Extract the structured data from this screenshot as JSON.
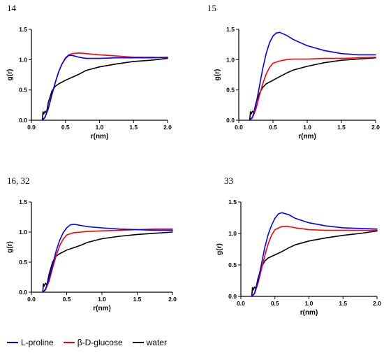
{
  "chart_data": [
    {
      "type": "line",
      "title": "14",
      "xlabel": "r(nm)",
      "ylabel": "g(r)",
      "xlim": [
        0.0,
        2.0
      ],
      "ylim": [
        0.0,
        1.5
      ],
      "xticks": [
        "0.0",
        "0.5",
        "1.0",
        "1.5",
        "2.0"
      ],
      "yticks": [
        "0.0",
        "0.5",
        "1.0",
        "1.5"
      ],
      "grid": false,
      "series": [
        {
          "name": "L-proline",
          "color": "#0000ff",
          "points": [
            [
              0.16,
              0.0
            ],
            [
              0.2,
              0.05
            ],
            [
              0.25,
              0.2
            ],
            [
              0.3,
              0.42
            ],
            [
              0.35,
              0.62
            ],
            [
              0.4,
              0.8
            ],
            [
              0.45,
              0.93
            ],
            [
              0.5,
              1.02
            ],
            [
              0.55,
              1.07
            ],
            [
              0.6,
              1.07
            ],
            [
              0.7,
              1.04
            ],
            [
              0.8,
              1.02
            ],
            [
              1.0,
              1.02
            ],
            [
              1.25,
              1.03
            ],
            [
              1.5,
              1.03
            ],
            [
              1.75,
              1.03
            ],
            [
              2.0,
              1.04
            ]
          ]
        },
        {
          "name": "β-D-glucose",
          "color": "#ff0000",
          "points": [
            [
              0.16,
              0.0
            ],
            [
              0.2,
              0.05
            ],
            [
              0.25,
              0.2
            ],
            [
              0.3,
              0.42
            ],
            [
              0.35,
              0.62
            ],
            [
              0.4,
              0.8
            ],
            [
              0.45,
              0.93
            ],
            [
              0.5,
              1.03
            ],
            [
              0.55,
              1.08
            ],
            [
              0.6,
              1.1
            ],
            [
              0.7,
              1.11
            ],
            [
              0.8,
              1.1
            ],
            [
              1.0,
              1.08
            ],
            [
              1.25,
              1.06
            ],
            [
              1.5,
              1.04
            ],
            [
              1.75,
              1.04
            ],
            [
              2.0,
              1.03
            ]
          ]
        },
        {
          "name": "water",
          "color": "#000000",
          "points": [
            [
              0.16,
              0.0
            ],
            [
              0.17,
              0.14
            ],
            [
              0.18,
              0.1
            ],
            [
              0.2,
              0.15
            ],
            [
              0.22,
              0.12
            ],
            [
              0.25,
              0.3
            ],
            [
              0.3,
              0.48
            ],
            [
              0.35,
              0.56
            ],
            [
              0.4,
              0.6
            ],
            [
              0.5,
              0.66
            ],
            [
              0.6,
              0.71
            ],
            [
              0.7,
              0.76
            ],
            [
              0.8,
              0.82
            ],
            [
              1.0,
              0.88
            ],
            [
              1.25,
              0.93
            ],
            [
              1.5,
              0.97
            ],
            [
              1.75,
              0.99
            ],
            [
              2.0,
              1.02
            ]
          ]
        }
      ]
    },
    {
      "type": "line",
      "title": "15",
      "xlabel": "r(nm)",
      "ylabel": "g(r)",
      "xlim": [
        0.0,
        2.0
      ],
      "ylim": [
        0.0,
        1.5
      ],
      "xticks": [
        "0.0",
        "0.5",
        "1.0",
        "1.5",
        "2.0"
      ],
      "yticks": [
        "0.0",
        "0.5",
        "1.0",
        "1.5"
      ],
      "grid": false,
      "series": [
        {
          "name": "L-proline",
          "color": "#0000ff",
          "points": [
            [
              0.16,
              0.0
            ],
            [
              0.2,
              0.05
            ],
            [
              0.25,
              0.25
            ],
            [
              0.3,
              0.55
            ],
            [
              0.35,
              0.85
            ],
            [
              0.4,
              1.1
            ],
            [
              0.45,
              1.28
            ],
            [
              0.5,
              1.39
            ],
            [
              0.55,
              1.44
            ],
            [
              0.6,
              1.45
            ],
            [
              0.7,
              1.4
            ],
            [
              0.8,
              1.33
            ],
            [
              1.0,
              1.23
            ],
            [
              1.25,
              1.15
            ],
            [
              1.5,
              1.1
            ],
            [
              1.75,
              1.08
            ],
            [
              2.0,
              1.08
            ]
          ]
        },
        {
          "name": "β-D-glucose",
          "color": "#ff0000",
          "points": [
            [
              0.16,
              0.0
            ],
            [
              0.2,
              0.04
            ],
            [
              0.25,
              0.18
            ],
            [
              0.3,
              0.4
            ],
            [
              0.35,
              0.6
            ],
            [
              0.4,
              0.76
            ],
            [
              0.45,
              0.87
            ],
            [
              0.5,
              0.94
            ],
            [
              0.6,
              0.98
            ],
            [
              0.7,
              1.0
            ],
            [
              0.8,
              1.01
            ],
            [
              1.0,
              1.01
            ],
            [
              1.25,
              1.02
            ],
            [
              1.5,
              1.02
            ],
            [
              1.75,
              1.03
            ],
            [
              2.0,
              1.04
            ]
          ]
        },
        {
          "name": "water",
          "color": "#000000",
          "points": [
            [
              0.16,
              0.0
            ],
            [
              0.17,
              0.14
            ],
            [
              0.18,
              0.1
            ],
            [
              0.2,
              0.15
            ],
            [
              0.22,
              0.12
            ],
            [
              0.25,
              0.28
            ],
            [
              0.3,
              0.44
            ],
            [
              0.35,
              0.54
            ],
            [
              0.4,
              0.6
            ],
            [
              0.5,
              0.66
            ],
            [
              0.6,
              0.72
            ],
            [
              0.7,
              0.78
            ],
            [
              0.8,
              0.83
            ],
            [
              1.0,
              0.89
            ],
            [
              1.25,
              0.95
            ],
            [
              1.5,
              0.99
            ],
            [
              1.75,
              1.01
            ],
            [
              2.0,
              1.03
            ]
          ]
        }
      ]
    },
    {
      "type": "line",
      "title": "16, 32",
      "xlabel": "r(nm)",
      "ylabel": "g(r)",
      "xlim": [
        0.0,
        2.0
      ],
      "ylim": [
        0.0,
        1.5
      ],
      "xticks": [
        "0.0",
        "0.5",
        "1.0",
        "1.5",
        "2.0"
      ],
      "yticks": [
        "0.0",
        "0.5",
        "1.0",
        "1.5"
      ],
      "grid": false,
      "series": [
        {
          "name": "L-proline",
          "color": "#0000ff",
          "points": [
            [
              0.16,
              0.0
            ],
            [
              0.2,
              0.05
            ],
            [
              0.25,
              0.22
            ],
            [
              0.3,
              0.45
            ],
            [
              0.35,
              0.68
            ],
            [
              0.4,
              0.86
            ],
            [
              0.45,
              0.99
            ],
            [
              0.5,
              1.07
            ],
            [
              0.55,
              1.12
            ],
            [
              0.6,
              1.13
            ],
            [
              0.7,
              1.11
            ],
            [
              0.8,
              1.09
            ],
            [
              1.0,
              1.07
            ],
            [
              1.25,
              1.05
            ],
            [
              1.5,
              1.04
            ],
            [
              1.75,
              1.03
            ],
            [
              2.0,
              1.03
            ]
          ]
        },
        {
          "name": "β-D-glucose",
          "color": "#ff0000",
          "points": [
            [
              0.16,
              0.0
            ],
            [
              0.2,
              0.04
            ],
            [
              0.25,
              0.18
            ],
            [
              0.3,
              0.4
            ],
            [
              0.35,
              0.6
            ],
            [
              0.4,
              0.77
            ],
            [
              0.45,
              0.88
            ],
            [
              0.5,
              0.95
            ],
            [
              0.6,
              0.99
            ],
            [
              0.7,
              1.0
            ],
            [
              0.8,
              1.01
            ],
            [
              1.0,
              1.02
            ],
            [
              1.25,
              1.03
            ],
            [
              1.5,
              1.04
            ],
            [
              1.75,
              1.05
            ],
            [
              2.0,
              1.05
            ]
          ]
        },
        {
          "name": "water",
          "color": "#000000",
          "points": [
            [
              0.16,
              0.0
            ],
            [
              0.17,
              0.14
            ],
            [
              0.18,
              0.1
            ],
            [
              0.2,
              0.15
            ],
            [
              0.22,
              0.12
            ],
            [
              0.25,
              0.3
            ],
            [
              0.3,
              0.5
            ],
            [
              0.35,
              0.6
            ],
            [
              0.4,
              0.64
            ],
            [
              0.5,
              0.7
            ],
            [
              0.6,
              0.74
            ],
            [
              0.7,
              0.78
            ],
            [
              0.8,
              0.83
            ],
            [
              1.0,
              0.89
            ],
            [
              1.25,
              0.93
            ],
            [
              1.5,
              0.96
            ],
            [
              1.75,
              0.98
            ],
            [
              2.0,
              1.0
            ]
          ]
        }
      ]
    },
    {
      "type": "line",
      "title": "33",
      "xlabel": "r(nm)",
      "ylabel": "g(r)",
      "xlim": [
        0.0,
        2.0
      ],
      "ylim": [
        0.0,
        1.5
      ],
      "xticks": [
        "0.0",
        "0.5",
        "1.0",
        "1.5",
        "2.0"
      ],
      "yticks": [
        "0.0",
        "0.5",
        "1.0",
        "1.5"
      ],
      "grid": false,
      "series": [
        {
          "name": "L-proline",
          "color": "#0000ff",
          "points": [
            [
              0.16,
              0.0
            ],
            [
              0.2,
              0.05
            ],
            [
              0.25,
              0.24
            ],
            [
              0.3,
              0.5
            ],
            [
              0.35,
              0.77
            ],
            [
              0.4,
              0.98
            ],
            [
              0.45,
              1.13
            ],
            [
              0.5,
              1.24
            ],
            [
              0.55,
              1.31
            ],
            [
              0.6,
              1.33
            ],
            [
              0.7,
              1.3
            ],
            [
              0.8,
              1.24
            ],
            [
              1.0,
              1.17
            ],
            [
              1.25,
              1.12
            ],
            [
              1.5,
              1.09
            ],
            [
              1.75,
              1.08
            ],
            [
              2.0,
              1.07
            ]
          ]
        },
        {
          "name": "β-D-glucose",
          "color": "#ff0000",
          "points": [
            [
              0.16,
              0.0
            ],
            [
              0.2,
              0.04
            ],
            [
              0.25,
              0.2
            ],
            [
              0.3,
              0.42
            ],
            [
              0.35,
              0.64
            ],
            [
              0.4,
              0.83
            ],
            [
              0.45,
              0.97
            ],
            [
              0.5,
              1.06
            ],
            [
              0.6,
              1.11
            ],
            [
              0.7,
              1.11
            ],
            [
              0.8,
              1.09
            ],
            [
              1.0,
              1.06
            ],
            [
              1.25,
              1.05
            ],
            [
              1.5,
              1.05
            ],
            [
              1.75,
              1.05
            ],
            [
              2.0,
              1.05
            ]
          ]
        },
        {
          "name": "water",
          "color": "#000000",
          "points": [
            [
              0.16,
              0.0
            ],
            [
              0.17,
              0.14
            ],
            [
              0.18,
              0.1
            ],
            [
              0.2,
              0.15
            ],
            [
              0.22,
              0.12
            ],
            [
              0.25,
              0.28
            ],
            [
              0.3,
              0.46
            ],
            [
              0.35,
              0.56
            ],
            [
              0.4,
              0.61
            ],
            [
              0.5,
              0.66
            ],
            [
              0.6,
              0.71
            ],
            [
              0.7,
              0.77
            ],
            [
              0.8,
              0.82
            ],
            [
              1.0,
              0.88
            ],
            [
              1.25,
              0.93
            ],
            [
              1.5,
              0.97
            ],
            [
              1.75,
              1.0
            ],
            [
              2.0,
              1.04
            ]
          ]
        }
      ]
    }
  ],
  "legend": {
    "position": "bottom-left",
    "items": [
      {
        "label": "L-proline",
        "color": "#0000ff"
      },
      {
        "label": "β-D-glucose",
        "color": "#ff0000"
      },
      {
        "label": "water",
        "color": "#000000"
      }
    ]
  }
}
